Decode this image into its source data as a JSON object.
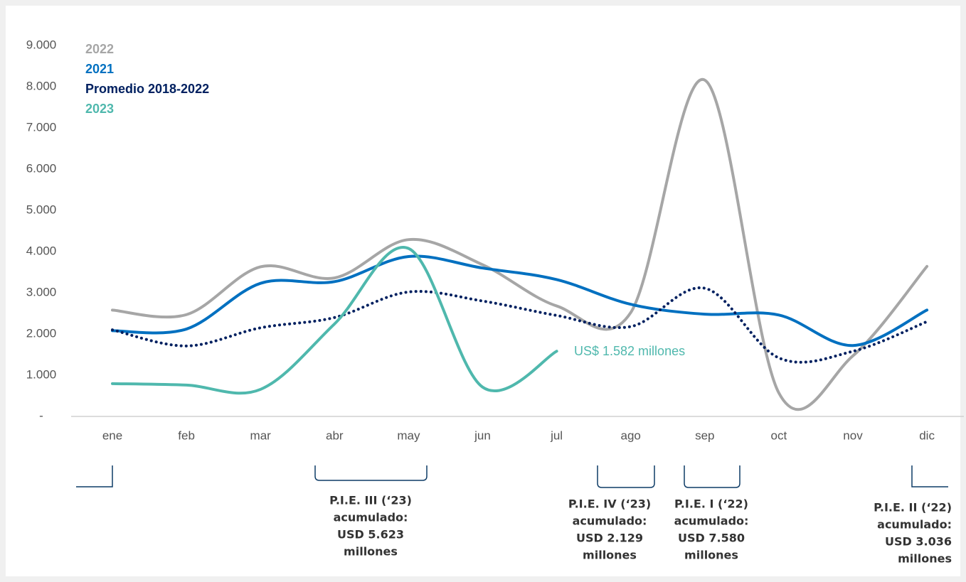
{
  "chart_data": {
    "type": "line",
    "categories": [
      "ene",
      "feb",
      "mar",
      "abr",
      "may",
      "jun",
      "jul",
      "ago",
      "sep",
      "oct",
      "nov",
      "dic"
    ],
    "series": [
      {
        "name": "2022",
        "color": "#a6a6a6",
        "values": [
          2580,
          2470,
          3630,
          3360,
          4290,
          3680,
          2680,
          2520,
          8160,
          570,
          1470,
          3640
        ]
      },
      {
        "name": "2021",
        "color": "#0070c0",
        "values": [
          2080,
          2120,
          3230,
          3270,
          3880,
          3600,
          3320,
          2720,
          2480,
          2460,
          1720,
          2580
        ]
      },
      {
        "name": "Promedio 2018-2022",
        "color": "#002060",
        "dotted": true,
        "values": [
          2100,
          1710,
          2150,
          2400,
          3020,
          2800,
          2450,
          2180,
          3110,
          1420,
          1580,
          2300
        ]
      },
      {
        "name": "2023",
        "color": "#4fb8ad",
        "values": [
          795,
          760,
          656,
          2245,
          4075,
          710,
          1582,
          null,
          null,
          null,
          null,
          null
        ]
      }
    ],
    "ylim": [
      0,
      9000
    ],
    "yticks": [
      {
        "value": 0,
        "label": "-"
      },
      {
        "value": 1000,
        "label": "1.000"
      },
      {
        "value": 2000,
        "label": "2.000"
      },
      {
        "value": 3000,
        "label": "3.000"
      },
      {
        "value": 4000,
        "label": "4.000"
      },
      {
        "value": 5000,
        "label": "5.000"
      },
      {
        "value": 6000,
        "label": "6.000"
      },
      {
        "value": 7000,
        "label": "7.000"
      },
      {
        "value": 8000,
        "label": "8.000"
      },
      {
        "value": 9000,
        "label": "9.000"
      }
    ],
    "grid": false,
    "annotations": [
      {
        "text": "US$ 1.582 millones"
      },
      {
        "lines": [
          "P.I.E. III (‘23)",
          "acumulado:",
          "USD 5.623",
          "millones"
        ]
      },
      {
        "lines": [
          "P.I.E. IV (‘23)",
          "acumulado:",
          "USD 2.129",
          "millones"
        ]
      },
      {
        "lines": [
          "P.I.E. I (‘22)",
          "acumulado:",
          "USD 7.580",
          "millones"
        ]
      },
      {
        "lines": [
          "P.I.E. II (‘22)",
          "acumulado:",
          "USD 3.036",
          "millones"
        ]
      }
    ]
  }
}
